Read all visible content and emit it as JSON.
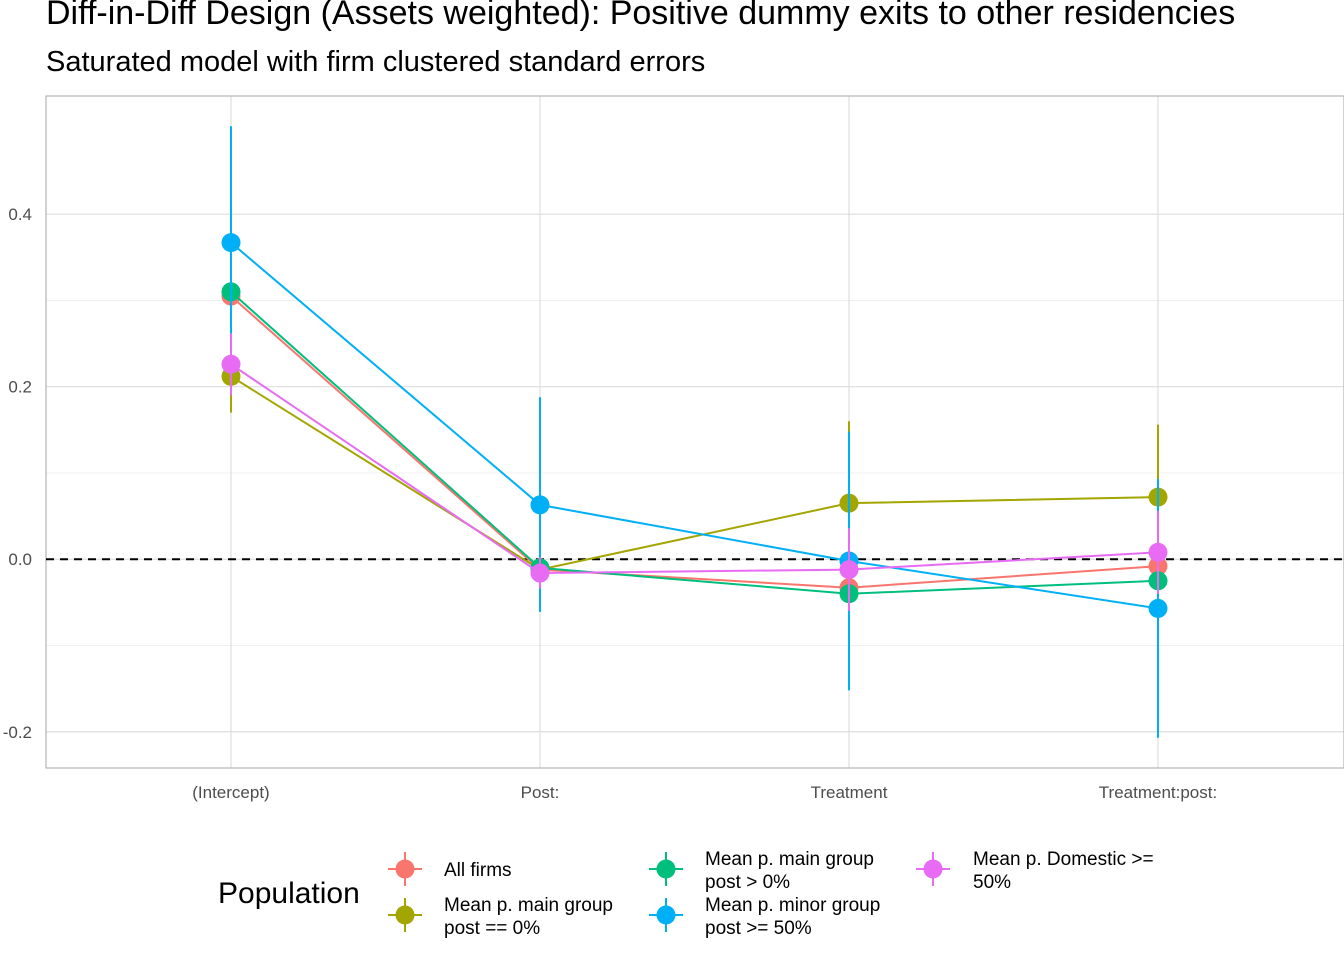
{
  "chart_data": {
    "type": "line",
    "title": "Diff-in-Diff Design (Assets weighted): Positive dummy exits to other residencies",
    "subtitle": "Saturated model with firm clustered standard errors",
    "xlabel": "",
    "ylabel": "",
    "categories": [
      "(Intercept)",
      "Post:",
      "Treatment",
      "Treatment:post:"
    ],
    "yticks": [
      -0.2,
      0.0,
      0.2,
      0.4
    ],
    "ytick_labels": [
      "-0.2",
      "0.0",
      "0.2",
      "0.4"
    ],
    "ylim": [
      -0.242,
      0.537
    ],
    "reference_line": 0,
    "grid": true,
    "legend_position": "bottom",
    "legend_title": "Population",
    "series": [
      {
        "name": "All firms",
        "label_lines": [
          "All firms"
        ],
        "color": "#F8766D",
        "values": [
          0.305,
          -0.012,
          -0.033,
          -0.008
        ],
        "lower": [
          0.245,
          -0.03,
          -0.085,
          -0.035
        ],
        "upper": [
          0.365,
          0.006,
          0.019,
          0.019
        ]
      },
      {
        "name": "Mean p. main group post == 0%",
        "label_lines": [
          "Mean p. main group",
          "post == 0%"
        ],
        "color": "#A3A500",
        "values": [
          0.212,
          -0.012,
          0.065,
          0.072
        ],
        "lower": [
          0.17,
          -0.03,
          -0.03,
          -0.012
        ],
        "upper": [
          0.254,
          0.006,
          0.16,
          0.156
        ]
      },
      {
        "name": "Mean p. main group post > 0%",
        "label_lines": [
          "Mean p. main group",
          "post > 0%"
        ],
        "color": "#00BF7D",
        "values": [
          0.31,
          -0.01,
          -0.04,
          -0.025
        ],
        "lower": [
          0.25,
          -0.028,
          -0.09,
          -0.055
        ],
        "upper": [
          0.37,
          0.008,
          0.01,
          0.005
        ]
      },
      {
        "name": "Mean p. minor group post >= 50%",
        "label_lines": [
          "Mean p. minor group",
          "post >= 50%"
        ],
        "color": "#00B0F6",
        "values": [
          0.367,
          0.063,
          -0.002,
          -0.057
        ],
        "lower": [
          0.232,
          -0.061,
          -0.152,
          -0.207
        ],
        "upper": [
          0.502,
          0.188,
          0.148,
          0.093
        ]
      },
      {
        "name": "Mean p. Domestic >= 50%",
        "label_lines": [
          "Mean p. Domestic >=",
          "50%"
        ],
        "color": "#E76BF3",
        "values": [
          0.226,
          -0.016,
          -0.012,
          0.008
        ],
        "lower": [
          0.19,
          -0.034,
          -0.06,
          -0.04
        ],
        "upper": [
          0.262,
          0.002,
          0.036,
          0.056
        ]
      }
    ]
  }
}
